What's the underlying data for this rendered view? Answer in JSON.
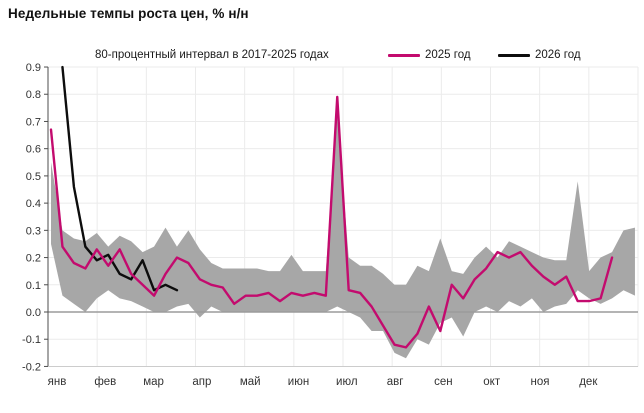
{
  "header": {
    "title": "Недельные темпы роста цен, % н/н"
  },
  "legend": {
    "band_label": "80-процентный интервал в 2017-2025 годах",
    "series_2025_label": "2025 год",
    "series_2026_label": "2026 год"
  },
  "colors": {
    "band": "#a7a7a7",
    "line_2025": "#c30b6e",
    "line_2026": "#0d0d0d",
    "grid": "#ebebeb",
    "zero_line": "#9b9b9b",
    "axis": "#4d4d4d",
    "bottom_spine": "#cccccc",
    "text": "#333333"
  },
  "chart_data": {
    "type": "line",
    "title": "Недельные темпы роста цен, % н/н",
    "x_unit": "weeks of year",
    "months": [
      "янв",
      "фев",
      "мар",
      "апр",
      "май",
      "июн",
      "июл",
      "авг",
      "сен",
      "окт",
      "ноя",
      "дек"
    ],
    "ylim": [
      -0.2,
      0.9
    ],
    "y_tick_step": 0.1,
    "grid": true,
    "legend_position": "top",
    "band_2017_2025": {
      "name": "80-процентный интервал в 2017-2025 годах",
      "start_week": 1,
      "lower": [
        0.25,
        0.06,
        0.03,
        0.0,
        0.05,
        0.08,
        0.05,
        0.04,
        0.02,
        0.0,
        0.0,
        0.02,
        0.03,
        -0.02,
        0.02,
        0.0,
        0.0,
        0.0,
        0.0,
        0.0,
        0.0,
        0.0,
        0.0,
        0.0,
        0.0,
        0.02,
        0.0,
        -0.02,
        -0.07,
        -0.07,
        -0.15,
        -0.17,
        -0.1,
        -0.12,
        -0.04,
        -0.02,
        -0.09,
        0.0,
        0.02,
        0.0,
        0.04,
        0.02,
        0.05,
        0.0,
        0.02,
        0.03,
        0.08,
        0.05,
        0.03,
        0.05,
        0.08,
        0.06
      ],
      "upper": [
        0.55,
        0.3,
        0.27,
        0.26,
        0.29,
        0.24,
        0.28,
        0.26,
        0.22,
        0.24,
        0.31,
        0.24,
        0.3,
        0.23,
        0.18,
        0.16,
        0.16,
        0.16,
        0.16,
        0.15,
        0.15,
        0.21,
        0.15,
        0.15,
        0.15,
        0.73,
        0.2,
        0.17,
        0.17,
        0.14,
        0.1,
        0.1,
        0.17,
        0.15,
        0.27,
        0.15,
        0.14,
        0.2,
        0.24,
        0.2,
        0.26,
        0.24,
        0.22,
        0.2,
        0.19,
        0.19,
        0.48,
        0.15,
        0.2,
        0.22,
        0.3,
        0.31
      ]
    },
    "series": [
      {
        "name": "2025 год",
        "color": "#c30b6e",
        "start_week": 1,
        "values": [
          0.67,
          0.24,
          0.18,
          0.16,
          0.23,
          0.17,
          0.23,
          0.14,
          0.1,
          0.06,
          0.14,
          0.2,
          0.18,
          0.12,
          0.1,
          0.09,
          0.03,
          0.06,
          0.06,
          0.07,
          0.04,
          0.07,
          0.06,
          0.07,
          0.06,
          0.79,
          0.08,
          0.07,
          0.02,
          -0.05,
          -0.12,
          -0.13,
          -0.08,
          0.02,
          -0.07,
          0.1,
          0.05,
          0.12,
          0.16,
          0.22,
          0.2,
          0.22,
          0.17,
          0.13,
          0.1,
          0.13,
          0.04,
          0.04,
          0.05,
          0.2
        ]
      },
      {
        "name": "2026 год",
        "color": "#0d0d0d",
        "start_week": 2,
        "values": [
          0.9,
          0.46,
          0.24,
          0.19,
          0.21,
          0.14,
          0.12,
          0.19,
          0.08,
          0.1,
          0.08
        ]
      }
    ]
  }
}
